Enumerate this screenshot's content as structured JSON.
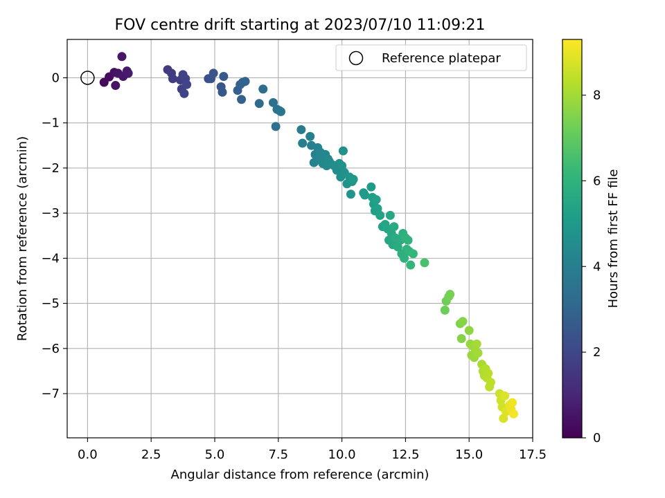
{
  "chart_data": {
    "type": "scatter",
    "title": "FOV centre drift starting at 2023/07/10 11:09:21",
    "xlabel": "Angular distance from reference (arcmin)",
    "ylabel": "Rotation from reference (arcmin)",
    "xlim": [
      -0.8,
      17.5
    ],
    "ylim": [
      -7.98,
      0.85
    ],
    "xticks": [
      0,
      2.5,
      5,
      7.5,
      10,
      12.5,
      15,
      17.5
    ],
    "xtick_labels": [
      "0.0",
      "2.5",
      "5.0",
      "7.5",
      "10.0",
      "12.5",
      "15.0",
      "17.5"
    ],
    "yticks": [
      0,
      -1,
      -2,
      -3,
      -4,
      -5,
      -6,
      -7
    ],
    "ytick_labels": [
      "0",
      "−1",
      "−2",
      "−3",
      "−4",
      "−5",
      "−6",
      "−7"
    ],
    "grid": true,
    "legend": {
      "placement": "top-right",
      "entries": [
        "Reference platepar"
      ]
    },
    "reference_point": {
      "x": 0,
      "y": 0,
      "marker": "hollow circle"
    },
    "colorbar": {
      "label": "Hours from first FF file",
      "colormap": "viridis",
      "range": [
        0,
        9.3
      ],
      "ticks": [
        0,
        2,
        4,
        6,
        8
      ],
      "tick_labels": [
        "0",
        "2",
        "4",
        "6",
        "8"
      ]
    },
    "points": [
      [
        0.65,
        -0.1,
        0.2
      ],
      [
        0.85,
        0.02,
        0.3
      ],
      [
        1.05,
        0.12,
        0.4
      ],
      [
        1.1,
        -0.17,
        0.45
      ],
      [
        1.2,
        0.1,
        0.5
      ],
      [
        1.35,
        0.47,
        0.55
      ],
      [
        1.4,
        0.03,
        0.6
      ],
      [
        1.55,
        0.15,
        0.65
      ],
      [
        1.6,
        0.1,
        0.7
      ],
      [
        3.15,
        0.18,
        1.6
      ],
      [
        3.3,
        0.1,
        1.65
      ],
      [
        3.35,
        -0.02,
        1.7
      ],
      [
        3.65,
        -0.05,
        1.75
      ],
      [
        3.7,
        -0.25,
        1.8
      ],
      [
        3.75,
        0.07,
        1.85
      ],
      [
        3.8,
        -0.35,
        1.9
      ],
      [
        3.85,
        -0.02,
        1.9
      ],
      [
        3.9,
        -0.15,
        1.95
      ],
      [
        4.75,
        -0.02,
        2.3
      ],
      [
        4.85,
        -0.02,
        2.35
      ],
      [
        4.95,
        0.1,
        2.4
      ],
      [
        5.25,
        -0.2,
        2.5
      ],
      [
        5.3,
        -0.32,
        2.55
      ],
      [
        5.35,
        0.03,
        2.6
      ],
      [
        5.9,
        -0.28,
        2.8
      ],
      [
        6.0,
        -0.15,
        2.85
      ],
      [
        6.05,
        -0.48,
        2.9
      ],
      [
        6.1,
        -0.1,
        2.95
      ],
      [
        6.2,
        -0.08,
        3.0
      ],
      [
        6.75,
        -0.57,
        3.2
      ],
      [
        6.9,
        -0.25,
        3.3
      ],
      [
        7.3,
        -0.55,
        3.4
      ],
      [
        7.4,
        -1.08,
        3.45
      ],
      [
        7.45,
        -0.7,
        3.5
      ],
      [
        7.55,
        -0.73,
        3.55
      ],
      [
        7.6,
        -0.75,
        3.6
      ],
      [
        8.4,
        -1.15,
        3.9
      ],
      [
        8.45,
        -1.45,
        3.95
      ],
      [
        8.75,
        -1.3,
        4.0
      ],
      [
        8.8,
        -1.5,
        4.05
      ],
      [
        8.9,
        -1.88,
        4.1
      ],
      [
        8.95,
        -1.7,
        4.1
      ],
      [
        9.05,
        -1.55,
        4.15
      ],
      [
        9.1,
        -1.82,
        4.2
      ],
      [
        9.15,
        -1.65,
        4.2
      ],
      [
        9.2,
        -1.75,
        4.25
      ],
      [
        9.25,
        -1.9,
        4.3
      ],
      [
        9.35,
        -1.7,
        4.3
      ],
      [
        9.4,
        -1.95,
        4.35
      ],
      [
        9.45,
        -1.8,
        4.35
      ],
      [
        9.5,
        -1.85,
        4.4
      ],
      [
        9.6,
        -1.92,
        4.45
      ],
      [
        9.7,
        -1.95,
        4.5
      ],
      [
        9.8,
        -2.05,
        4.55
      ],
      [
        9.9,
        -1.9,
        4.6
      ],
      [
        9.95,
        -2.2,
        4.6
      ],
      [
        10.0,
        -1.95,
        4.65
      ],
      [
        10.05,
        -1.62,
        4.7
      ],
      [
        10.1,
        -2.1,
        4.7
      ],
      [
        10.2,
        -2.35,
        4.75
      ],
      [
        10.3,
        -2.2,
        4.8
      ],
      [
        10.35,
        -2.58,
        4.8
      ],
      [
        10.4,
        -2.3,
        4.85
      ],
      [
        10.45,
        -2.25,
        4.9
      ],
      [
        10.85,
        -2.55,
        5.0
      ],
      [
        10.9,
        -2.6,
        5.05
      ],
      [
        11.15,
        -2.42,
        5.1
      ],
      [
        11.2,
        -2.65,
        5.15
      ],
      [
        11.25,
        -2.8,
        5.2
      ],
      [
        11.3,
        -2.95,
        5.25
      ],
      [
        11.35,
        -2.7,
        5.3
      ],
      [
        11.4,
        -2.9,
        5.3
      ],
      [
        11.5,
        -3.05,
        5.35
      ],
      [
        11.6,
        -3.3,
        5.4
      ],
      [
        11.7,
        -3.25,
        5.45
      ],
      [
        11.8,
        -3.35,
        5.5
      ],
      [
        11.85,
        -3.6,
        5.5
      ],
      [
        11.9,
        -3.05,
        5.55
      ],
      [
        11.95,
        -3.45,
        5.6
      ],
      [
        12.0,
        -3.7,
        5.6
      ],
      [
        12.05,
        -3.3,
        5.65
      ],
      [
        12.1,
        -3.55,
        5.7
      ],
      [
        12.2,
        -3.75,
        5.75
      ],
      [
        12.3,
        -3.6,
        5.8
      ],
      [
        12.35,
        -3.9,
        5.85
      ],
      [
        12.4,
        -3.45,
        5.85
      ],
      [
        12.45,
        -4.0,
        5.9
      ],
      [
        12.5,
        -3.55,
        5.95
      ],
      [
        12.55,
        -3.8,
        5.95
      ],
      [
        12.6,
        -3.6,
        6.0
      ],
      [
        12.65,
        -3.85,
        6.05
      ],
      [
        12.7,
        -4.15,
        6.1
      ],
      [
        12.8,
        -3.9,
        6.15
      ],
      [
        13.25,
        -4.1,
        6.6
      ],
      [
        14.05,
        -5.15,
        7.2
      ],
      [
        14.1,
        -4.95,
        7.25
      ],
      [
        14.2,
        -4.85,
        7.3
      ],
      [
        14.25,
        -4.8,
        7.35
      ],
      [
        14.65,
        -5.45,
        7.5
      ],
      [
        14.7,
        -5.78,
        7.55
      ],
      [
        14.75,
        -5.4,
        7.6
      ],
      [
        15.0,
        -5.6,
        7.75
      ],
      [
        15.05,
        -5.9,
        7.8
      ],
      [
        15.1,
        -6.15,
        7.85
      ],
      [
        15.15,
        -5.95,
        7.9
      ],
      [
        15.2,
        -6.2,
        7.9
      ],
      [
        15.25,
        -6.05,
        7.95
      ],
      [
        15.3,
        -5.9,
        8.0
      ],
      [
        15.35,
        -6.1,
        8.0
      ],
      [
        15.5,
        -6.35,
        8.1
      ],
      [
        15.55,
        -6.5,
        8.15
      ],
      [
        15.6,
        -6.6,
        8.2
      ],
      [
        15.65,
        -6.45,
        8.25
      ],
      [
        15.7,
        -6.65,
        8.3
      ],
      [
        15.75,
        -6.55,
        8.3
      ],
      [
        15.8,
        -6.85,
        8.35
      ],
      [
        15.85,
        -6.75,
        8.4
      ],
      [
        16.2,
        -7.0,
        8.6
      ],
      [
        16.25,
        -7.15,
        8.65
      ],
      [
        16.3,
        -7.3,
        8.7
      ],
      [
        16.35,
        -7.55,
        8.75
      ],
      [
        16.4,
        -7.05,
        8.8
      ],
      [
        16.45,
        -7.4,
        8.85
      ],
      [
        16.6,
        -7.25,
        9.0
      ],
      [
        16.65,
        -7.35,
        9.05
      ],
      [
        16.7,
        -7.2,
        9.1
      ],
      [
        16.75,
        -7.45,
        9.15
      ]
    ]
  }
}
